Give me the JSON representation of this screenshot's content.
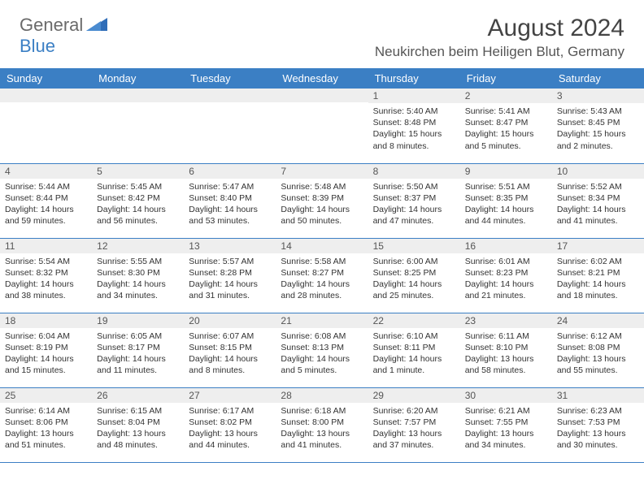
{
  "brand": {
    "part1": "General",
    "part2": "Blue"
  },
  "title": "August 2024",
  "location": "Neukirchen beim Heiligen Blut, Germany",
  "colors": {
    "header_bg": "#3b7fc4",
    "header_text": "#ffffff",
    "daynum_bg": "#eeeeee",
    "border": "#3b7fc4",
    "background": "#ffffff"
  },
  "weekdays": [
    "Sunday",
    "Monday",
    "Tuesday",
    "Wednesday",
    "Thursday",
    "Friday",
    "Saturday"
  ],
  "weeks": [
    [
      {
        "day": "",
        "lines": [
          "",
          "",
          "",
          ""
        ]
      },
      {
        "day": "",
        "lines": [
          "",
          "",
          "",
          ""
        ]
      },
      {
        "day": "",
        "lines": [
          "",
          "",
          "",
          ""
        ]
      },
      {
        "day": "",
        "lines": [
          "",
          "",
          "",
          ""
        ]
      },
      {
        "day": "1",
        "lines": [
          "Sunrise: 5:40 AM",
          "Sunset: 8:48 PM",
          "Daylight: 15 hours",
          "and 8 minutes."
        ]
      },
      {
        "day": "2",
        "lines": [
          "Sunrise: 5:41 AM",
          "Sunset: 8:47 PM",
          "Daylight: 15 hours",
          "and 5 minutes."
        ]
      },
      {
        "day": "3",
        "lines": [
          "Sunrise: 5:43 AM",
          "Sunset: 8:45 PM",
          "Daylight: 15 hours",
          "and 2 minutes."
        ]
      }
    ],
    [
      {
        "day": "4",
        "lines": [
          "Sunrise: 5:44 AM",
          "Sunset: 8:44 PM",
          "Daylight: 14 hours",
          "and 59 minutes."
        ]
      },
      {
        "day": "5",
        "lines": [
          "Sunrise: 5:45 AM",
          "Sunset: 8:42 PM",
          "Daylight: 14 hours",
          "and 56 minutes."
        ]
      },
      {
        "day": "6",
        "lines": [
          "Sunrise: 5:47 AM",
          "Sunset: 8:40 PM",
          "Daylight: 14 hours",
          "and 53 minutes."
        ]
      },
      {
        "day": "7",
        "lines": [
          "Sunrise: 5:48 AM",
          "Sunset: 8:39 PM",
          "Daylight: 14 hours",
          "and 50 minutes."
        ]
      },
      {
        "day": "8",
        "lines": [
          "Sunrise: 5:50 AM",
          "Sunset: 8:37 PM",
          "Daylight: 14 hours",
          "and 47 minutes."
        ]
      },
      {
        "day": "9",
        "lines": [
          "Sunrise: 5:51 AM",
          "Sunset: 8:35 PM",
          "Daylight: 14 hours",
          "and 44 minutes."
        ]
      },
      {
        "day": "10",
        "lines": [
          "Sunrise: 5:52 AM",
          "Sunset: 8:34 PM",
          "Daylight: 14 hours",
          "and 41 minutes."
        ]
      }
    ],
    [
      {
        "day": "11",
        "lines": [
          "Sunrise: 5:54 AM",
          "Sunset: 8:32 PM",
          "Daylight: 14 hours",
          "and 38 minutes."
        ]
      },
      {
        "day": "12",
        "lines": [
          "Sunrise: 5:55 AM",
          "Sunset: 8:30 PM",
          "Daylight: 14 hours",
          "and 34 minutes."
        ]
      },
      {
        "day": "13",
        "lines": [
          "Sunrise: 5:57 AM",
          "Sunset: 8:28 PM",
          "Daylight: 14 hours",
          "and 31 minutes."
        ]
      },
      {
        "day": "14",
        "lines": [
          "Sunrise: 5:58 AM",
          "Sunset: 8:27 PM",
          "Daylight: 14 hours",
          "and 28 minutes."
        ]
      },
      {
        "day": "15",
        "lines": [
          "Sunrise: 6:00 AM",
          "Sunset: 8:25 PM",
          "Daylight: 14 hours",
          "and 25 minutes."
        ]
      },
      {
        "day": "16",
        "lines": [
          "Sunrise: 6:01 AM",
          "Sunset: 8:23 PM",
          "Daylight: 14 hours",
          "and 21 minutes."
        ]
      },
      {
        "day": "17",
        "lines": [
          "Sunrise: 6:02 AM",
          "Sunset: 8:21 PM",
          "Daylight: 14 hours",
          "and 18 minutes."
        ]
      }
    ],
    [
      {
        "day": "18",
        "lines": [
          "Sunrise: 6:04 AM",
          "Sunset: 8:19 PM",
          "Daylight: 14 hours",
          "and 15 minutes."
        ]
      },
      {
        "day": "19",
        "lines": [
          "Sunrise: 6:05 AM",
          "Sunset: 8:17 PM",
          "Daylight: 14 hours",
          "and 11 minutes."
        ]
      },
      {
        "day": "20",
        "lines": [
          "Sunrise: 6:07 AM",
          "Sunset: 8:15 PM",
          "Daylight: 14 hours",
          "and 8 minutes."
        ]
      },
      {
        "day": "21",
        "lines": [
          "Sunrise: 6:08 AM",
          "Sunset: 8:13 PM",
          "Daylight: 14 hours",
          "and 5 minutes."
        ]
      },
      {
        "day": "22",
        "lines": [
          "Sunrise: 6:10 AM",
          "Sunset: 8:11 PM",
          "Daylight: 14 hours",
          "and 1 minute."
        ]
      },
      {
        "day": "23",
        "lines": [
          "Sunrise: 6:11 AM",
          "Sunset: 8:10 PM",
          "Daylight: 13 hours",
          "and 58 minutes."
        ]
      },
      {
        "day": "24",
        "lines": [
          "Sunrise: 6:12 AM",
          "Sunset: 8:08 PM",
          "Daylight: 13 hours",
          "and 55 minutes."
        ]
      }
    ],
    [
      {
        "day": "25",
        "lines": [
          "Sunrise: 6:14 AM",
          "Sunset: 8:06 PM",
          "Daylight: 13 hours",
          "and 51 minutes."
        ]
      },
      {
        "day": "26",
        "lines": [
          "Sunrise: 6:15 AM",
          "Sunset: 8:04 PM",
          "Daylight: 13 hours",
          "and 48 minutes."
        ]
      },
      {
        "day": "27",
        "lines": [
          "Sunrise: 6:17 AM",
          "Sunset: 8:02 PM",
          "Daylight: 13 hours",
          "and 44 minutes."
        ]
      },
      {
        "day": "28",
        "lines": [
          "Sunrise: 6:18 AM",
          "Sunset: 8:00 PM",
          "Daylight: 13 hours",
          "and 41 minutes."
        ]
      },
      {
        "day": "29",
        "lines": [
          "Sunrise: 6:20 AM",
          "Sunset: 7:57 PM",
          "Daylight: 13 hours",
          "and 37 minutes."
        ]
      },
      {
        "day": "30",
        "lines": [
          "Sunrise: 6:21 AM",
          "Sunset: 7:55 PM",
          "Daylight: 13 hours",
          "and 34 minutes."
        ]
      },
      {
        "day": "31",
        "lines": [
          "Sunrise: 6:23 AM",
          "Sunset: 7:53 PM",
          "Daylight: 13 hours",
          "and 30 minutes."
        ]
      }
    ]
  ]
}
